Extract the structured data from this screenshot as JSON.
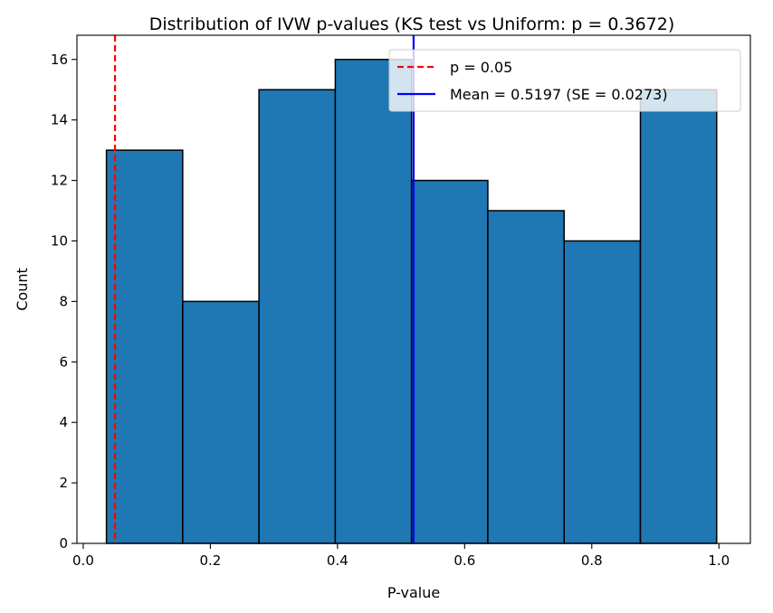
{
  "chart_data": {
    "type": "bar",
    "title": "Distribution of IVW p-values (KS test vs Uniform: p = 0.3672)",
    "xlabel": "P-value",
    "ylabel": "Count",
    "xlim": [
      -0.0099,
      1.0495
    ],
    "ylim": [
      0,
      16.8
    ],
    "xticks": [
      0.0,
      0.2,
      0.4,
      0.6,
      0.8,
      1.0
    ],
    "xtick_labels": [
      "0.0",
      "0.2",
      "0.4",
      "0.6",
      "0.8",
      "1.0"
    ],
    "yticks": [
      0,
      2,
      4,
      6,
      8,
      10,
      12,
      14,
      16
    ],
    "ytick_labels": [
      "0",
      "2",
      "4",
      "6",
      "8",
      "10",
      "12",
      "14",
      "16"
    ],
    "bins": [
      {
        "x0": 0.0365,
        "x1": 0.1565,
        "count": 13
      },
      {
        "x0": 0.1565,
        "x1": 0.2765,
        "count": 8
      },
      {
        "x0": 0.2765,
        "x1": 0.3965,
        "count": 15
      },
      {
        "x0": 0.3965,
        "x1": 0.5165,
        "count": 16
      },
      {
        "x0": 0.5165,
        "x1": 0.6365,
        "count": 12
      },
      {
        "x0": 0.6365,
        "x1": 0.7565,
        "count": 11
      },
      {
        "x0": 0.7565,
        "x1": 0.8765,
        "count": 10
      },
      {
        "x0": 0.8765,
        "x1": 0.9965,
        "count": 15
      }
    ],
    "bar_color": "#1f77b4",
    "bar_edge_color": "#000000",
    "reference_lines": [
      {
        "label": "p = 0.05",
        "x": 0.05,
        "color": "#ff0000",
        "style": "dashed"
      },
      {
        "label": "Mean = 0.5197 (SE = 0.0273)",
        "x": 0.5197,
        "color": "#0000ff",
        "style": "solid"
      }
    ],
    "legend_position": "upper-right",
    "grid": false
  }
}
